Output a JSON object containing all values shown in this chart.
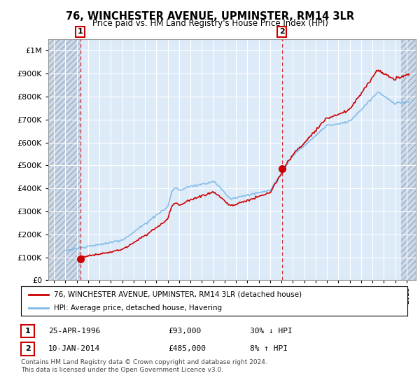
{
  "title": "76, WINCHESTER AVENUE, UPMINSTER, RM14 3LR",
  "subtitle": "Price paid vs. HM Land Registry's House Price Index (HPI)",
  "legend_line1": "76, WINCHESTER AVENUE, UPMINSTER, RM14 3LR (detached house)",
  "legend_line2": "HPI: Average price, detached house, Havering",
  "footnote1": "Contains HM Land Registry data © Crown copyright and database right 2024.",
  "footnote2": "This data is licensed under the Open Government Licence v3.0.",
  "sale1_year": 1996.32,
  "sale1_price": 93000,
  "sale2_year": 2014.03,
  "sale2_price": 485000,
  "hpi_color": "#7ab8e8",
  "price_color": "#cc0000",
  "bg_plot": "#ddeaf8",
  "yticks": [
    0,
    100000,
    200000,
    300000,
    400000,
    500000,
    600000,
    700000,
    800000,
    900000,
    1000000
  ],
  "ylim_max": 1050000,
  "xlim_min": 1993.5,
  "xlim_max": 2025.8,
  "xtick_start": 1994,
  "xtick_end": 2025
}
